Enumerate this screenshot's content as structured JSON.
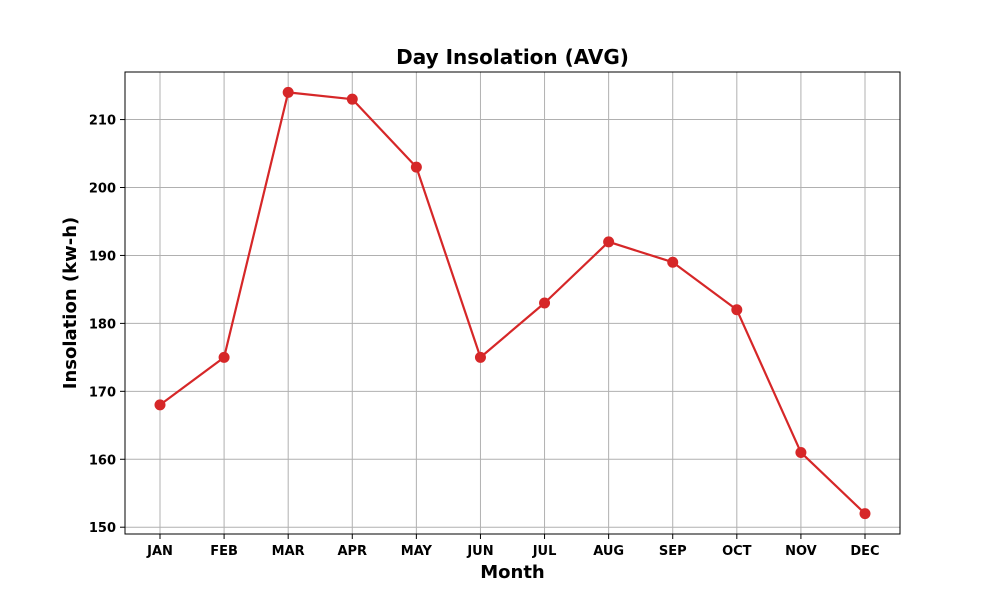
{
  "chart_data": {
    "type": "line",
    "title": "Day Insolation (AVG)",
    "xlabel": "Month",
    "ylabel": "Insolation (kw-h)",
    "categories": [
      "JAN",
      "FEB",
      "MAR",
      "APR",
      "MAY",
      "JUN",
      "JUL",
      "AUG",
      "SEP",
      "OCT",
      "NOV",
      "DEC"
    ],
    "series": [
      {
        "values": [
          168,
          175,
          214,
          213,
          203,
          175,
          183,
          192,
          189,
          182,
          161,
          152
        ]
      }
    ],
    "ylim": [
      149,
      217
    ],
    "yticks": [
      150,
      160,
      170,
      180,
      190,
      200,
      210
    ],
    "grid": true,
    "line_color": "#d62728",
    "marker": "circle"
  }
}
